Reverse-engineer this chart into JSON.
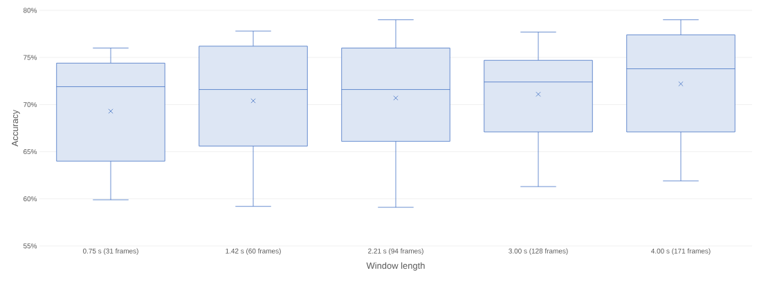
{
  "chart_data": {
    "type": "box",
    "xlabel": "Window length",
    "ylabel": "Accuracy",
    "categories": [
      "0.75 s (31 frames)",
      "1.42 s (60 frames)",
      "2.21 s (94 frames)",
      "3.00 s (128 frames)",
      "4.00 s (171 frames)"
    ],
    "color": "#4472c4",
    "marker": "cross",
    "grid": "y",
    "ylim": [
      55,
      80
    ],
    "yticks": [
      {
        "value": 55,
        "label": "55%"
      },
      {
        "value": 60,
        "label": "60%"
      },
      {
        "value": 65,
        "label": "65%"
      },
      {
        "value": 70,
        "label": "70%"
      },
      {
        "value": 75,
        "label": "75%"
      },
      {
        "value": 80,
        "label": "80%"
      }
    ],
    "boxes": [
      {
        "low": 59.9,
        "q1": 64.0,
        "median": 71.9,
        "q3": 74.4,
        "high": 76.0,
        "mean": 69.3
      },
      {
        "low": 59.2,
        "q1": 65.6,
        "median": 71.6,
        "q3": 76.2,
        "high": 77.8,
        "mean": 70.4
      },
      {
        "low": 59.1,
        "q1": 66.1,
        "median": 71.6,
        "q3": 76.0,
        "high": 79.0,
        "mean": 70.7
      },
      {
        "low": 61.3,
        "q1": 67.1,
        "median": 72.4,
        "q3": 74.7,
        "high": 77.7,
        "mean": 71.1
      },
      {
        "low": 61.9,
        "q1": 67.1,
        "median": 73.8,
        "q3": 77.4,
        "high": 79.0,
        "mean": 72.2
      }
    ]
  }
}
